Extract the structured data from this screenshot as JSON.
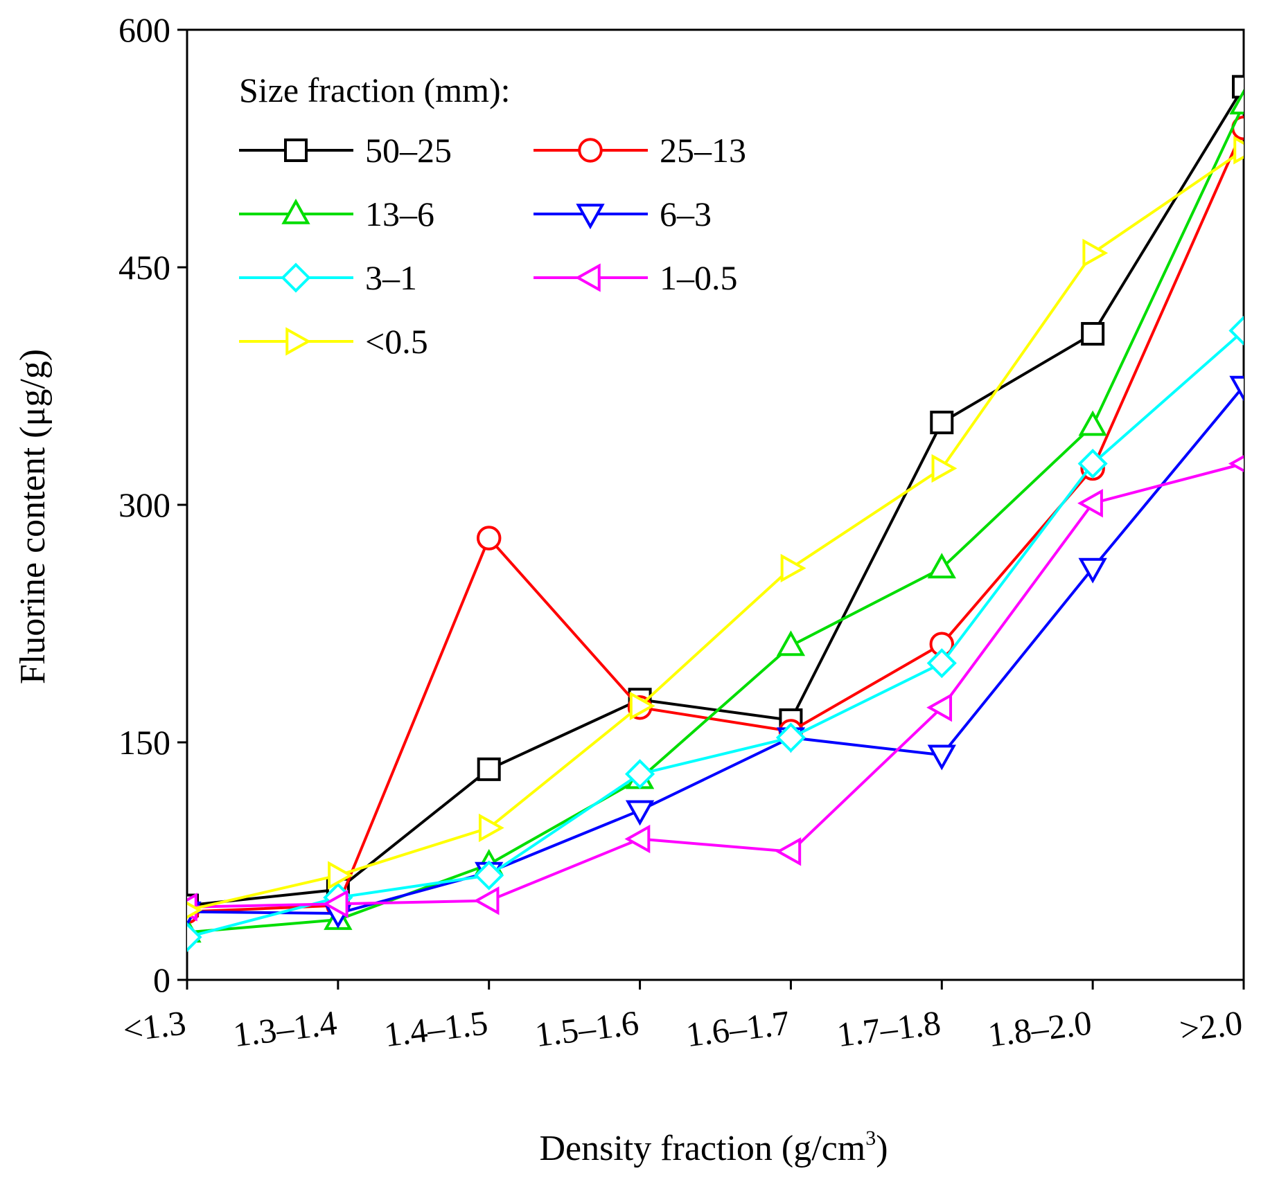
{
  "chart_data": {
    "type": "line",
    "title": "",
    "xlabel": "Density fraction (g/cm",
    "xlabel_sup": "3",
    "xlabel_end": ")",
    "ylabel": "Fluorine content (μg/g)",
    "categories": [
      "<1.3",
      "1.3–1.4",
      "1.4–1.5",
      "1.5–1.6",
      "1.6–1.7",
      "1.7–1.8",
      "1.8–2.0",
      ">2.0"
    ],
    "ylim": [
      0,
      600
    ],
    "yticks": [
      "0",
      "150",
      "300",
      "450",
      "600"
    ],
    "grid": false,
    "legend": {
      "title": "Size fraction (mm):",
      "position": "top-left"
    },
    "series": [
      {
        "name": "50–25",
        "color": "#000000",
        "marker": "square",
        "values": [
          47,
          57,
          133,
          177,
          164,
          352,
          408,
          564
        ]
      },
      {
        "name": "25–13",
        "color": "#ff0000",
        "marker": "circle",
        "values": [
          43,
          47,
          279,
          172,
          157,
          212,
          323,
          538
        ]
      },
      {
        "name": "13–6",
        "color": "#00dd00",
        "marker": "triangle-up",
        "values": [
          30,
          38,
          73,
          127,
          211,
          260,
          350,
          553
        ]
      },
      {
        "name": "6–3",
        "color": "#0000ff",
        "marker": "triangle-down",
        "values": [
          43,
          42,
          68,
          107,
          153,
          142,
          260,
          375
        ]
      },
      {
        "name": "3–1",
        "color": "#00ffff",
        "marker": "diamond",
        "values": [
          27,
          52,
          66,
          130,
          153,
          200,
          326,
          410
        ]
      },
      {
        "name": "1–0.5",
        "color": "#ff00ff",
        "marker": "triangle-left",
        "values": [
          46,
          48,
          50,
          89,
          81,
          172,
          301,
          326
        ]
      },
      {
        "name": "<0.5",
        "color": "#ffff00",
        "marker": "triangle-right",
        "values": [
          44,
          66,
          96,
          173,
          260,
          323,
          459,
          524
        ]
      }
    ]
  }
}
